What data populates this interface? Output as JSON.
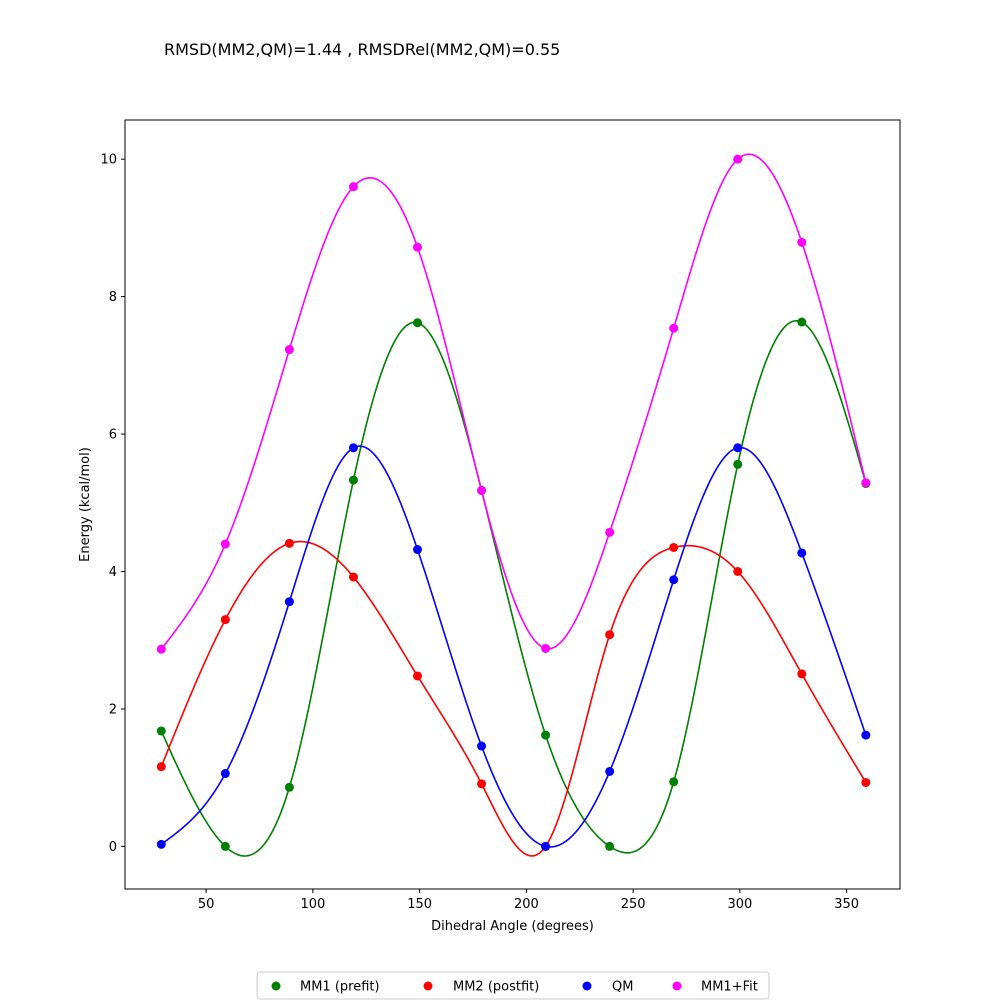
{
  "chart_data": {
    "type": "line",
    "title": "RMSD(MM2,QM)=1.44 , RMSDRel(MM2,QM)=0.55",
    "xlabel": "Dihedral Angle (degrees)",
    "ylabel": "Energy (kcal/mol)",
    "xlim": [
      12,
      375
    ],
    "ylim": [
      -0.62,
      10.57
    ],
    "xticks": [
      50,
      100,
      150,
      200,
      250,
      300,
      350
    ],
    "yticks": [
      0,
      2,
      4,
      6,
      8,
      10
    ],
    "legend_position": "bottom-center",
    "series": [
      {
        "name": "MM1 (prefit)",
        "color": "#008000",
        "x": [
          29,
          59,
          89,
          119,
          149,
          179,
          209,
          239,
          269,
          299,
          329,
          359
        ],
        "y": [
          1.68,
          0.0,
          0.86,
          5.33,
          7.62,
          5.18,
          1.62,
          0.0,
          0.94,
          5.56,
          7.63,
          5.28
        ]
      },
      {
        "name": "MM2 (postfit)",
        "color": "#ff0000",
        "x": [
          29,
          59,
          89,
          119,
          149,
          179,
          209,
          239,
          269,
          299,
          329,
          359
        ],
        "y": [
          1.16,
          3.3,
          4.41,
          3.92,
          2.48,
          0.91,
          0.0,
          3.08,
          4.35,
          4.0,
          2.51,
          0.93
        ]
      },
      {
        "name": "QM",
        "color": "#0000ff",
        "x": [
          29,
          59,
          89,
          119,
          149,
          179,
          209,
          239,
          269,
          299,
          329,
          359
        ],
        "y": [
          0.03,
          1.06,
          3.56,
          5.8,
          4.32,
          1.46,
          0.0,
          1.09,
          3.88,
          5.8,
          4.27,
          1.62
        ]
      },
      {
        "name": "MM1+Fit",
        "color": "#ff00ff",
        "x": [
          29,
          59,
          89,
          119,
          149,
          179,
          209,
          239,
          269,
          299,
          329,
          359
        ],
        "y": [
          2.87,
          4.4,
          7.23,
          9.6,
          8.72,
          5.18,
          2.88,
          4.57,
          7.54,
          10.0,
          8.79,
          5.29
        ]
      }
    ]
  }
}
